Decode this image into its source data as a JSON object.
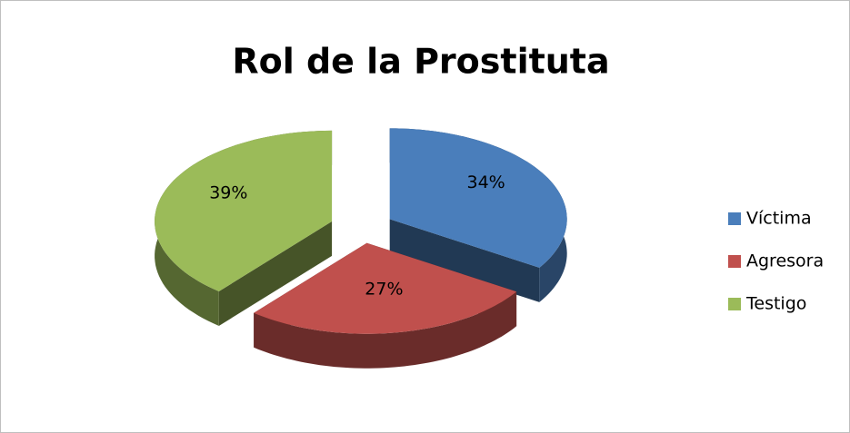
{
  "chart_data": {
    "type": "pie",
    "title": "Rol de la Prostituta",
    "categories": [
      "Víctima",
      "Agresora",
      "Testigo"
    ],
    "values": [
      34,
      27,
      39
    ],
    "value_labels": [
      "34%",
      "27%",
      "39%"
    ],
    "colors": [
      "#4a7ebb",
      "#c0504d",
      "#9bbb59"
    ],
    "legend": "right"
  }
}
